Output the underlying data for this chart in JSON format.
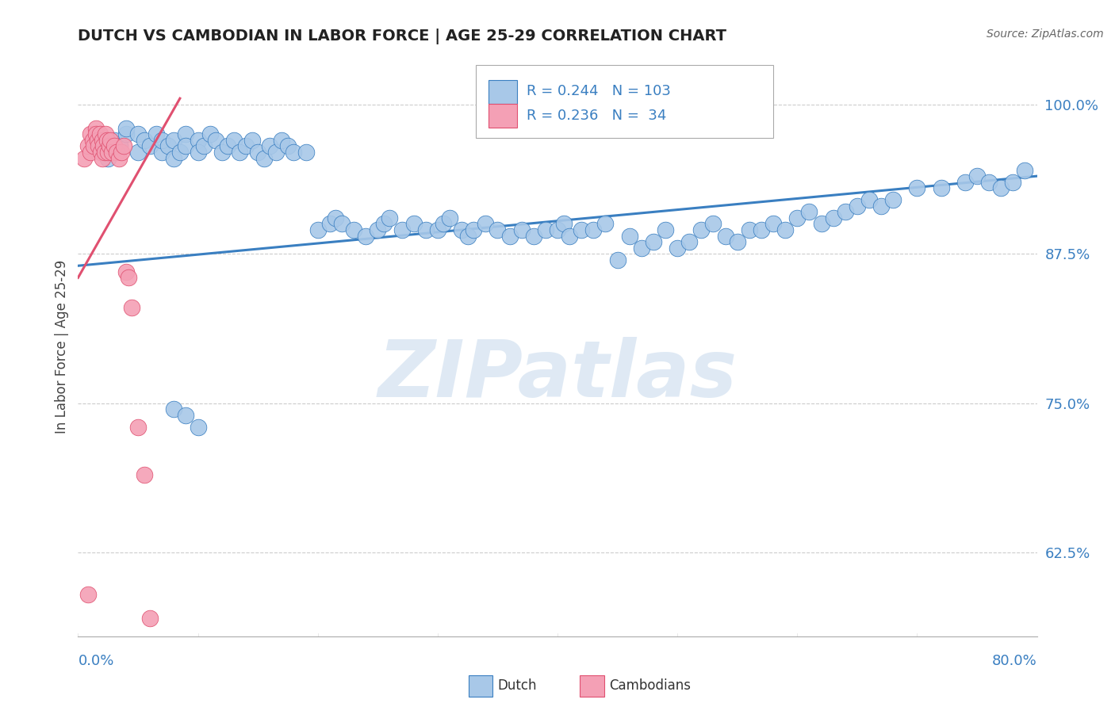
{
  "title": "DUTCH VS CAMBODIAN IN LABOR FORCE | AGE 25-29 CORRELATION CHART",
  "source_text": "Source: ZipAtlas.com",
  "ylabel": "In Labor Force | Age 25-29",
  "xlim": [
    0.0,
    0.8
  ],
  "ylim": [
    0.555,
    1.04
  ],
  "watermark": "ZIPatlas",
  "legend_dutch_R": "0.244",
  "legend_dutch_N": "103",
  "legend_camb_R": "0.236",
  "legend_camb_N": " 34",
  "dutch_color": "#a8c8e8",
  "camb_color": "#f4a0b5",
  "dutch_line_color": "#3a7fc1",
  "camb_line_color": "#e05070",
  "label_color": "#3a7fc1",
  "dutch_trend_x": [
    0.0,
    0.8
  ],
  "dutch_trend_y": [
    0.865,
    0.94
  ],
  "camb_trend_x": [
    0.0,
    0.085
  ],
  "camb_trend_y": [
    0.855,
    1.005
  ],
  "dutch_x": [
    0.02,
    0.025,
    0.03,
    0.035,
    0.04,
    0.04,
    0.05,
    0.05,
    0.055,
    0.06,
    0.065,
    0.07,
    0.07,
    0.075,
    0.08,
    0.08,
    0.085,
    0.09,
    0.09,
    0.1,
    0.1,
    0.105,
    0.11,
    0.115,
    0.12,
    0.125,
    0.13,
    0.135,
    0.14,
    0.145,
    0.15,
    0.155,
    0.16,
    0.165,
    0.17,
    0.175,
    0.18,
    0.19,
    0.2,
    0.21,
    0.215,
    0.22,
    0.23,
    0.24,
    0.25,
    0.255,
    0.26,
    0.27,
    0.28,
    0.29,
    0.3,
    0.305,
    0.31,
    0.32,
    0.325,
    0.33,
    0.34,
    0.35,
    0.36,
    0.37,
    0.38,
    0.39,
    0.4,
    0.405,
    0.41,
    0.42,
    0.43,
    0.44,
    0.45,
    0.46,
    0.47,
    0.48,
    0.49,
    0.5,
    0.51,
    0.52,
    0.53,
    0.54,
    0.55,
    0.56,
    0.57,
    0.58,
    0.59,
    0.6,
    0.61,
    0.62,
    0.63,
    0.64,
    0.65,
    0.66,
    0.67,
    0.68,
    0.7,
    0.72,
    0.74,
    0.75,
    0.76,
    0.77,
    0.78,
    0.79,
    0.08,
    0.09,
    0.1
  ],
  "dutch_y": [
    0.96,
    0.955,
    0.97,
    0.965,
    0.975,
    0.98,
    0.96,
    0.975,
    0.97,
    0.965,
    0.975,
    0.96,
    0.97,
    0.965,
    0.955,
    0.97,
    0.96,
    0.975,
    0.965,
    0.97,
    0.96,
    0.965,
    0.975,
    0.97,
    0.96,
    0.965,
    0.97,
    0.96,
    0.965,
    0.97,
    0.96,
    0.955,
    0.965,
    0.96,
    0.97,
    0.965,
    0.96,
    0.96,
    0.895,
    0.9,
    0.905,
    0.9,
    0.895,
    0.89,
    0.895,
    0.9,
    0.905,
    0.895,
    0.9,
    0.895,
    0.895,
    0.9,
    0.905,
    0.895,
    0.89,
    0.895,
    0.9,
    0.895,
    0.89,
    0.895,
    0.89,
    0.895,
    0.895,
    0.9,
    0.89,
    0.895,
    0.895,
    0.9,
    0.87,
    0.89,
    0.88,
    0.885,
    0.895,
    0.88,
    0.885,
    0.895,
    0.9,
    0.89,
    0.885,
    0.895,
    0.895,
    0.9,
    0.895,
    0.905,
    0.91,
    0.9,
    0.905,
    0.91,
    0.915,
    0.92,
    0.915,
    0.92,
    0.93,
    0.93,
    0.935,
    0.94,
    0.935,
    0.93,
    0.935,
    0.945,
    0.745,
    0.74,
    0.73
  ],
  "camb_x": [
    0.005,
    0.008,
    0.01,
    0.01,
    0.012,
    0.013,
    0.015,
    0.015,
    0.016,
    0.017,
    0.018,
    0.019,
    0.02,
    0.02,
    0.021,
    0.022,
    0.023,
    0.024,
    0.025,
    0.026,
    0.027,
    0.028,
    0.03,
    0.032,
    0.034,
    0.036,
    0.038,
    0.04,
    0.042,
    0.045,
    0.05,
    0.055,
    0.06,
    0.008
  ],
  "camb_y": [
    0.955,
    0.965,
    0.975,
    0.96,
    0.97,
    0.965,
    0.98,
    0.975,
    0.97,
    0.965,
    0.975,
    0.96,
    0.97,
    0.955,
    0.965,
    0.96,
    0.975,
    0.97,
    0.96,
    0.965,
    0.97,
    0.96,
    0.965,
    0.96,
    0.955,
    0.96,
    0.965,
    0.86,
    0.855,
    0.83,
    0.73,
    0.69,
    0.57,
    0.59
  ]
}
